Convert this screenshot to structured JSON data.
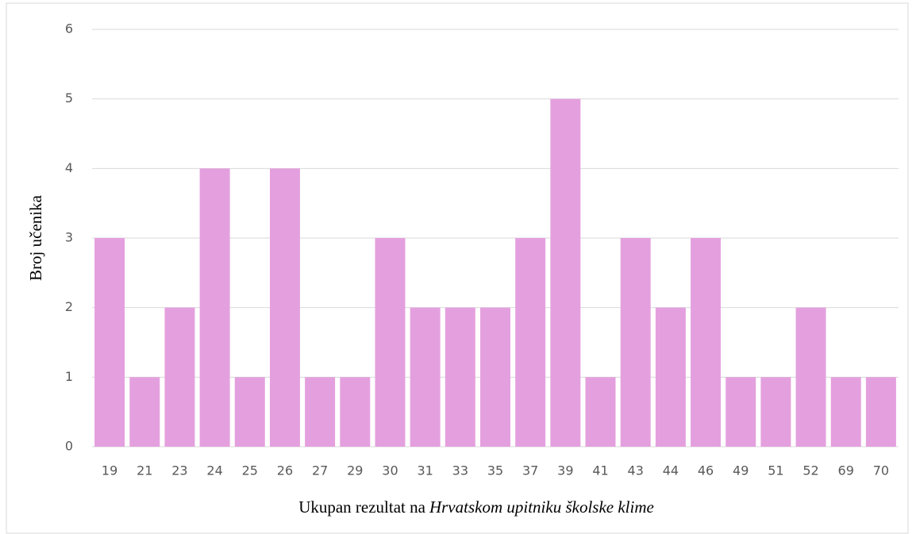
{
  "chart_data": {
    "type": "bar",
    "ylabel": "Broj učenika",
    "xlabel": "Ukupan rezultat na",
    "xlabel_italic": "Hrvatskom upitniku školske klime",
    "categories": [
      "19",
      "21",
      "23",
      "24",
      "25",
      "26",
      "27",
      "29",
      "30",
      "31",
      "33",
      "35",
      "37",
      "39",
      "41",
      "43",
      "44",
      "46",
      "49",
      "51",
      "52",
      "69",
      "70"
    ],
    "values": [
      3,
      1,
      2,
      4,
      1,
      4,
      1,
      1,
      3,
      2,
      2,
      2,
      3,
      5,
      1,
      3,
      2,
      3,
      1,
      1,
      2,
      1,
      1
    ],
    "color": "#e4a0de",
    "ylim": [
      0,
      6
    ],
    "yticks": [
      0,
      1,
      2,
      3,
      4,
      5,
      6
    ],
    "grid": true
  }
}
